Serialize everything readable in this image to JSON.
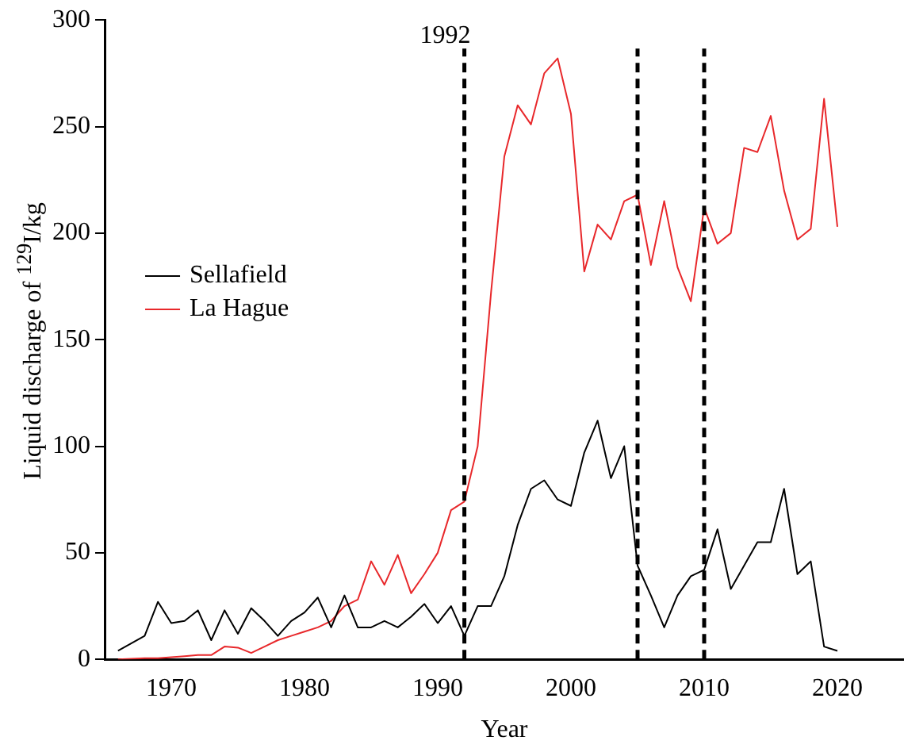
{
  "chart_data": {
    "type": "line",
    "xlabel": "Year",
    "ylabel": "Liquid discharge of $^{129}$I/kg",
    "x": [
      1966,
      1968,
      1969,
      1970,
      1971,
      1972,
      1973,
      1974,
      1975,
      1976,
      1977,
      1978,
      1979,
      1980,
      1981,
      1982,
      1983,
      1984,
      1985,
      1986,
      1987,
      1988,
      1989,
      1990,
      1991,
      1992,
      1993,
      1994,
      1995,
      1996,
      1997,
      1998,
      1999,
      2000,
      2001,
      2002,
      2003,
      2004,
      2005,
      2006,
      2007,
      2008,
      2009,
      2010,
      2011,
      2012,
      2013,
      2014,
      2015,
      2016,
      2017,
      2018,
      2019,
      2020
    ],
    "series": [
      {
        "name": "Sellafield",
        "color": "#000000",
        "values": [
          4,
          11,
          27,
          17,
          18,
          23,
          9,
          23,
          12,
          24,
          18,
          11,
          18,
          22,
          29,
          15,
          30,
          15,
          15,
          18,
          15,
          20,
          26,
          17,
          25,
          11,
          25,
          25,
          39,
          63,
          80,
          84,
          75,
          72,
          97,
          112,
          85,
          100,
          44,
          30,
          15,
          30,
          39,
          42,
          61,
          33,
          44,
          55,
          55,
          80,
          40,
          46,
          6,
          4
        ]
      },
      {
        "name": "La Hague",
        "color": "#e8282b",
        "values": [
          0,
          0.5,
          0.5,
          1,
          1.5,
          2,
          2,
          6,
          5.5,
          3,
          6,
          9,
          11,
          13,
          15,
          18,
          25,
          28,
          46,
          35,
          49,
          31,
          40,
          50,
          70,
          74,
          100,
          172,
          236,
          260,
          251,
          275,
          282,
          256,
          182,
          204,
          197,
          215,
          218,
          185,
          215,
          184,
          168,
          212,
          195,
          200,
          240,
          238,
          255,
          220,
          197,
          202,
          263,
          203
        ]
      }
    ],
    "xlim": [
      1965,
      2025
    ],
    "xticks": [
      1970,
      1980,
      1990,
      2000,
      2010,
      2020
    ],
    "ylim": [
      0,
      300
    ],
    "yticks": [
      0,
      50,
      100,
      150,
      200,
      250,
      300
    ],
    "ref_lines": [
      {
        "axis": "x",
        "value": 1992,
        "label": "1992",
        "line_style": "dashed",
        "color": "#000000"
      },
      {
        "axis": "x",
        "value": 2005,
        "line_style": "dashed",
        "color": "#000000"
      },
      {
        "axis": "x",
        "value": 2010,
        "line_style": "dashed",
        "color": "#000000"
      }
    ],
    "legend": "left",
    "grid": false,
    "marker": "none",
    "line_style": "solid"
  }
}
